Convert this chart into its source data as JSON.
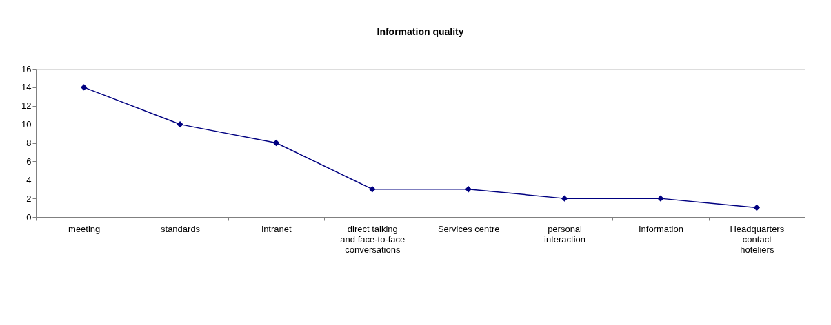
{
  "chart_data": {
    "type": "line",
    "title": "Information quality",
    "categories": [
      "meeting",
      "standards",
      "intranet",
      "direct talking and face-to-face conversations",
      "Services centre",
      "personal interaction",
      "Information",
      "Headquarters contact hoteliers"
    ],
    "series": [
      {
        "color": "#000080",
        "values": [
          14,
          10,
          8,
          3,
          3,
          2,
          2,
          1
        ]
      }
    ],
    "ylim": [
      0,
      16
    ],
    "yticks": [
      0,
      2,
      4,
      6,
      8,
      10,
      12,
      14,
      16
    ],
    "grid": false,
    "marker": "diamond",
    "line_style": "solid"
  }
}
